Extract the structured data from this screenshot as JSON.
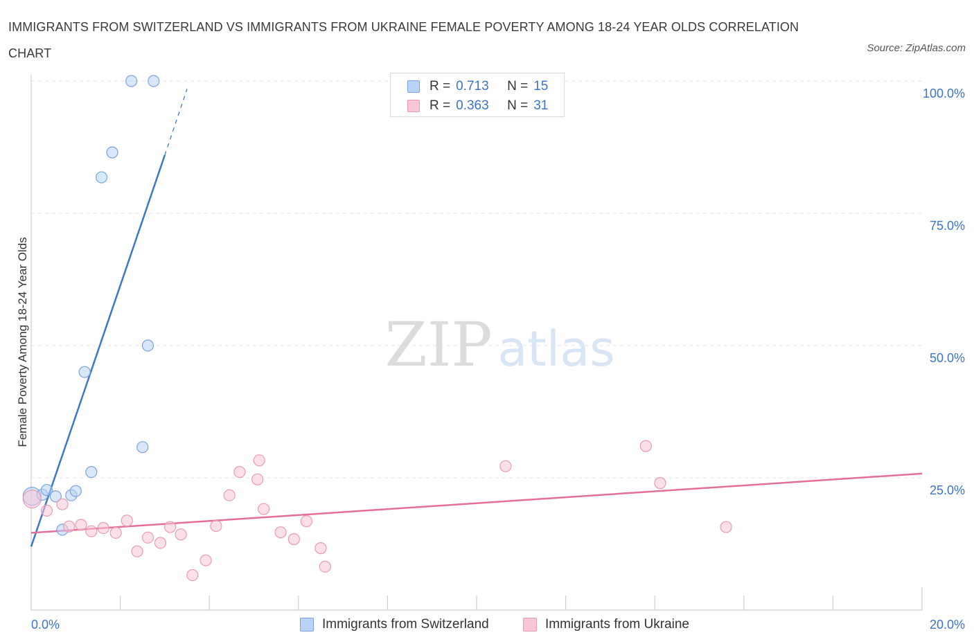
{
  "title": "IMMIGRANTS FROM SWITZERLAND VS IMMIGRANTS FROM UKRAINE FEMALE POVERTY AMONG 18-24 YEAR OLDS CORRELATION CHART",
  "source": "Source: ZipAtlas.com",
  "watermark": {
    "zip": "ZIP",
    "atlas": "atlas"
  },
  "legend": {
    "r_label": "R =",
    "n_label": "N =",
    "rows": [
      {
        "r": "0.713",
        "n": "15",
        "fill": "#b8d3f5",
        "stroke": "#7ba3dd"
      },
      {
        "r": "0.363",
        "n": "31",
        "fill": "#f9c6d6",
        "stroke": "#e89ab4"
      }
    ]
  },
  "chart_data": {
    "type": "scatter",
    "title": "IMMIGRANTS FROM SWITZERLAND VS IMMIGRANTS FROM UKRAINE FEMALE POVERTY AMONG 18-24 YEAR OLDS CORRELATION CHART",
    "xlabel": "",
    "ylabel": "Female Poverty Among 18-24 Year Olds",
    "xlim": [
      0,
      20
    ],
    "ylim": [
      0,
      100
    ],
    "x_tick_labels": [
      "0.0%",
      "20.0%"
    ],
    "y_tick_labels": [
      "25.0%",
      "50.0%",
      "75.0%",
      "100.0%"
    ],
    "y_gridlines": [
      25,
      50,
      75,
      100
    ],
    "series": [
      {
        "name": "Immigrants from Switzerland",
        "color": "#3b78cc",
        "fill": "#b8d3f5",
        "stroke": "#7ba3dd",
        "points": [
          [
            0.02,
            21.5
          ],
          [
            0.25,
            21.8
          ],
          [
            0.35,
            22.7
          ],
          [
            0.55,
            21.5
          ],
          [
            0.7,
            15.2
          ],
          [
            0.9,
            21.7
          ],
          [
            1.0,
            22.5
          ],
          [
            1.2,
            45.0
          ],
          [
            1.35,
            26.1
          ],
          [
            1.58,
            81.8
          ],
          [
            1.82,
            86.5
          ],
          [
            2.25,
            100.0
          ],
          [
            2.5,
            30.8
          ],
          [
            2.62,
            50.0
          ],
          [
            2.75,
            100.0
          ]
        ],
        "trend": {
          "x0": 0.0,
          "y0": 12.0,
          "x1": 3.0,
          "y1": 86.0,
          "dash_x1": 3.5,
          "dash_y1": 98.5
        }
      },
      {
        "name": "Immigrants from Ukraine",
        "color": "#e46e9a",
        "fill": "#f9c6d6",
        "stroke": "#e89ab4",
        "points": [
          [
            0.02,
            21.0
          ],
          [
            0.35,
            18.8
          ],
          [
            0.7,
            20.0
          ],
          [
            0.85,
            15.8
          ],
          [
            1.12,
            16.1
          ],
          [
            1.35,
            14.9
          ],
          [
            1.62,
            15.5
          ],
          [
            1.9,
            14.6
          ],
          [
            2.15,
            16.9
          ],
          [
            2.38,
            11.1
          ],
          [
            2.62,
            13.7
          ],
          [
            2.9,
            12.7
          ],
          [
            3.12,
            15.7
          ],
          [
            3.36,
            14.3
          ],
          [
            3.62,
            6.6
          ],
          [
            3.92,
            9.4
          ],
          [
            4.15,
            15.9
          ],
          [
            4.45,
            21.7
          ],
          [
            4.68,
            26.1
          ],
          [
            5.08,
            24.7
          ],
          [
            5.12,
            28.3
          ],
          [
            5.22,
            19.1
          ],
          [
            5.6,
            14.7
          ],
          [
            5.9,
            13.4
          ],
          [
            6.18,
            16.8
          ],
          [
            6.5,
            11.7
          ],
          [
            6.6,
            8.2
          ],
          [
            10.65,
            27.2
          ],
          [
            13.8,
            31.0
          ],
          [
            14.12,
            24.0
          ],
          [
            15.6,
            15.7
          ]
        ],
        "trend": {
          "x0": 0.0,
          "y0": 14.6,
          "x1": 20.0,
          "y1": 25.8
        }
      }
    ]
  }
}
